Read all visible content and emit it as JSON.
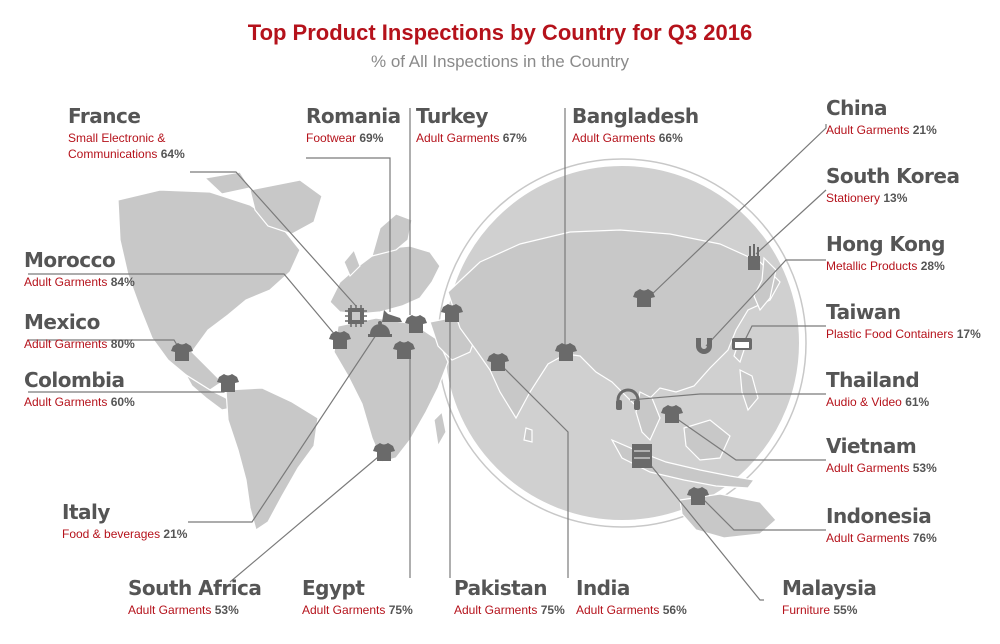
{
  "title": "Top Product Inspections by Country for Q3 2016",
  "subtitle": "% of All Inspections in the Country",
  "colors": {
    "accent": "#b5121b",
    "land": "#c8c8c8",
    "icon": "#6a6a6a",
    "text": "#555555"
  },
  "countries": [
    {
      "name": "France",
      "product": "Small Electronic & Communications",
      "pct": "64%",
      "icon": "circuit-chip-icon"
    },
    {
      "name": "Romania",
      "product": "Footwear",
      "pct": "69%",
      "icon": "high-heel-shoe-icon"
    },
    {
      "name": "Turkey",
      "product": "Adult Garments",
      "pct": "67%",
      "icon": "t-shirt-icon"
    },
    {
      "name": "Bangladesh",
      "product": "Adult Garments",
      "pct": "66%",
      "icon": "t-shirt-icon"
    },
    {
      "name": "Morocco",
      "product": "Adult Garments",
      "pct": "84%",
      "icon": "t-shirt-icon"
    },
    {
      "name": "Mexico",
      "product": "Adult Garments",
      "pct": "80%",
      "icon": "t-shirt-icon"
    },
    {
      "name": "Colombia",
      "product": "Adult Garments",
      "pct": "60%",
      "icon": "t-shirt-icon"
    },
    {
      "name": "Italy",
      "product": "Food & beverages",
      "pct": "21%",
      "icon": "food-cloche-icon"
    },
    {
      "name": "South Africa",
      "product": "Adult Garments",
      "pct": "53%",
      "icon": "t-shirt-icon"
    },
    {
      "name": "Egypt",
      "product": "Adult Garments",
      "pct": "75%",
      "icon": "t-shirt-icon"
    },
    {
      "name": "Pakistan",
      "product": "Adult Garments",
      "pct": "75%",
      "icon": "t-shirt-icon"
    },
    {
      "name": "India",
      "product": "Adult Garments",
      "pct": "56%",
      "icon": "t-shirt-icon"
    },
    {
      "name": "China",
      "product": "Adult Garments",
      "pct": "21%",
      "icon": "t-shirt-icon"
    },
    {
      "name": "South Korea",
      "product": "Stationery",
      "pct": "13%",
      "icon": "pencil-cup-icon"
    },
    {
      "name": "Hong Kong",
      "product": "Metallic Products",
      "pct": "28%",
      "icon": "magnet-icon"
    },
    {
      "name": "Taiwan",
      "product": "Plastic Food Containers",
      "pct": "17%",
      "icon": "food-container-icon"
    },
    {
      "name": "Thailand",
      "product": "Audio & Video",
      "pct": "61%",
      "icon": "headphones-icon"
    },
    {
      "name": "Vietnam",
      "product": "Adult Garments",
      "pct": "53%",
      "icon": "t-shirt-icon"
    },
    {
      "name": "Indonesia",
      "product": "Adult Garments",
      "pct": "76%",
      "icon": "t-shirt-icon"
    },
    {
      "name": "Malaysia",
      "product": "Furniture",
      "pct": "55%",
      "icon": "drawer-cabinet-icon"
    }
  ]
}
